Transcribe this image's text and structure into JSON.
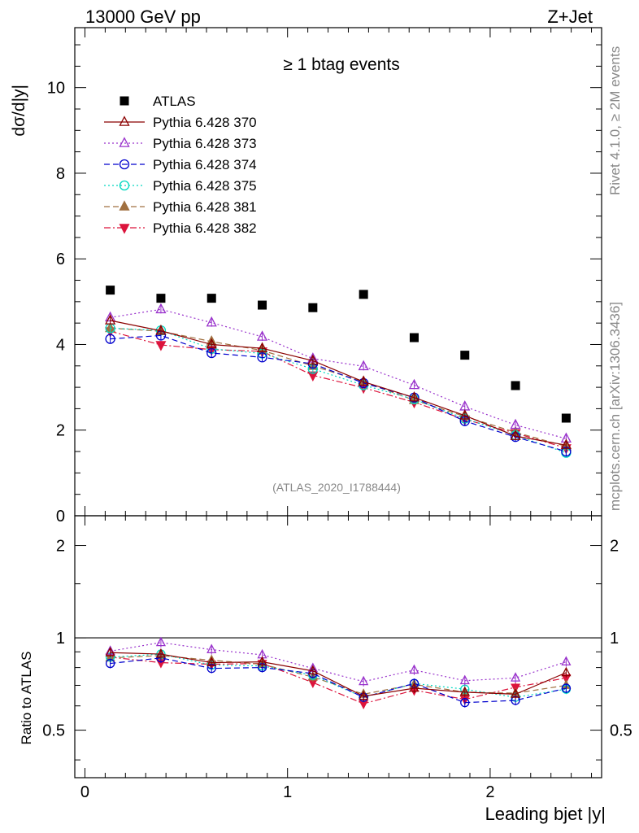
{
  "header": {
    "left": "13000 GeV pp",
    "right": "Z+Jet"
  },
  "side": {
    "rivet": "Rivet 4.1.0, ≥ 2M events",
    "mcplots": "mcplots.cern.ch [arXiv:1306.3436]"
  },
  "chart_data": [
    {
      "type": "scatter",
      "title": "≥ 1 btag events",
      "ylabel": "dσ/d|y|",
      "xlim": [
        -0.05,
        2.55
      ],
      "ylim": [
        0,
        11.4
      ],
      "yticks": [
        {
          "v": 0,
          "label": "0"
        },
        {
          "v": 2,
          "label": "2"
        },
        {
          "v": 4,
          "label": "4"
        },
        {
          "v": 6,
          "label": "6"
        },
        {
          "v": 8,
          "label": "8"
        },
        {
          "v": 10,
          "label": "10"
        }
      ],
      "watermark": "(ATLAS_2020_I1788444)",
      "x": [
        0.125,
        0.375,
        0.625,
        0.875,
        1.125,
        1.375,
        1.625,
        1.875,
        2.125,
        2.375
      ],
      "series": [
        {
          "name": "ATLAS",
          "color": "#000000",
          "marker": "square",
          "dash": "none",
          "values": [
            5.27,
            5.08,
            5.08,
            4.92,
            4.86,
            5.17,
            4.16,
            3.75,
            3.04,
            2.28
          ]
        },
        {
          "name": "Pythia 6.428 370",
          "color": "#8b0000",
          "marker": "tri-open",
          "dash": "solid",
          "values": [
            4.56,
            4.32,
            4.0,
            3.91,
            3.62,
            3.13,
            2.76,
            2.34,
            1.86,
            1.65
          ]
        },
        {
          "name": "Pythia 6.428 373",
          "color": "#9932cc",
          "marker": "tri-open",
          "dash": "dot",
          "values": [
            4.63,
            4.82,
            4.51,
            4.18,
            3.67,
            3.49,
            3.05,
            2.55,
            2.12,
            1.8
          ]
        },
        {
          "name": "Pythia 6.428 374",
          "color": "#0000cd",
          "marker": "circle-open",
          "dash": "dash",
          "values": [
            4.13,
            4.21,
            3.8,
            3.7,
            3.55,
            3.1,
            2.76,
            2.21,
            1.84,
            1.5
          ]
        },
        {
          "name": "Pythia 6.428 375",
          "color": "#00d8c0",
          "marker": "circle-open",
          "dash": "dot",
          "values": [
            4.38,
            4.33,
            3.9,
            3.79,
            3.43,
            3.05,
            2.72,
            2.27,
            1.88,
            1.47
          ]
        },
        {
          "name": "Pythia 6.428 381",
          "color": "#a07040",
          "marker": "tri-filled",
          "dash": "dash",
          "values": [
            4.38,
            4.31,
            4.07,
            3.86,
            3.5,
            3.13,
            2.7,
            2.32,
            1.95,
            1.62
          ]
        },
        {
          "name": "Pythia 6.428 382",
          "color": "#dc143c",
          "marker": "tri-down-filled",
          "dash": "dashdot",
          "values": [
            4.31,
            3.99,
            3.88,
            3.84,
            3.28,
            2.99,
            2.65,
            2.25,
            1.93,
            1.58
          ]
        }
      ]
    },
    {
      "type": "scatter",
      "title": "",
      "xlabel": "Leading bjet |y|",
      "ylabel": "Ratio to ATLAS",
      "xlim": [
        -0.05,
        2.55
      ],
      "ylim": [
        0.35,
        2.5
      ],
      "yscale": "log",
      "xticks": [
        {
          "v": 0,
          "label": "0"
        },
        {
          "v": 1,
          "label": "1"
        },
        {
          "v": 2,
          "label": "2"
        }
      ],
      "yticks": [
        {
          "v": 0.5,
          "label": "0.5"
        },
        {
          "v": 1,
          "label": "1"
        },
        {
          "v": 2,
          "label": "2"
        }
      ],
      "reference_line": 1,
      "x": [
        0.125,
        0.375,
        0.625,
        0.875,
        1.125,
        1.375,
        1.625,
        1.875,
        2.125,
        2.375
      ],
      "series": [
        {
          "name": "Pythia 6.428 370",
          "values": [
            0.895,
            0.885,
            0.83,
            0.835,
            0.78,
            0.645,
            0.685,
            0.665,
            0.655,
            0.77
          ]
        },
        {
          "name": "Pythia 6.428 373",
          "values": [
            0.905,
            0.965,
            0.915,
            0.88,
            0.795,
            0.72,
            0.785,
            0.725,
            0.74,
            0.835
          ]
        },
        {
          "name": "Pythia 6.428 374",
          "values": [
            0.825,
            0.86,
            0.795,
            0.8,
            0.765,
            0.64,
            0.71,
            0.615,
            0.625,
            0.685
          ]
        },
        {
          "name": "Pythia 6.428 375",
          "values": [
            0.865,
            0.885,
            0.815,
            0.81,
            0.755,
            0.64,
            0.71,
            0.68,
            0.64,
            0.68
          ]
        },
        {
          "name": "Pythia 6.428 381",
          "values": [
            0.86,
            0.875,
            0.845,
            0.82,
            0.745,
            0.655,
            0.705,
            0.665,
            0.66,
            0.7
          ]
        },
        {
          "name": "Pythia 6.428 382",
          "values": [
            0.865,
            0.83,
            0.82,
            0.825,
            0.715,
            0.61,
            0.675,
            0.63,
            0.69,
            0.74
          ]
        }
      ]
    }
  ]
}
